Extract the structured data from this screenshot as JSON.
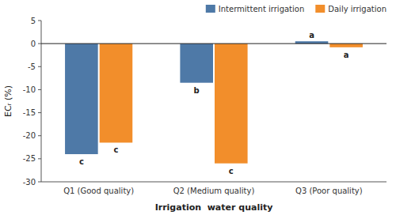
{
  "chart_data": {
    "type": "bar",
    "categories": [
      "Q1 (Good quality)",
      "Q2 (Medium quality)",
      "Q3 (Poor quality)"
    ],
    "series": [
      {
        "name": "Intermittent irrigation",
        "color": "#4e79a7",
        "values": [
          -24.0,
          -8.5,
          0.5
        ],
        "annotations": [
          "c",
          "b",
          "a"
        ]
      },
      {
        "name": "Daily irrigation",
        "color": "#f28e2b",
        "values": [
          -21.5,
          -26.0,
          -0.8
        ],
        "annotations": [
          "c",
          "c",
          "a"
        ]
      }
    ],
    "ylim": [
      -30,
      5
    ],
    "yticks": [
      -30,
      -25,
      -20,
      -15,
      -10,
      -5,
      0,
      5
    ],
    "ylabel": "ECᵣ (%)",
    "xlabel": "Irrigation  water quality",
    "legend": "upper right",
    "grid": false
  }
}
